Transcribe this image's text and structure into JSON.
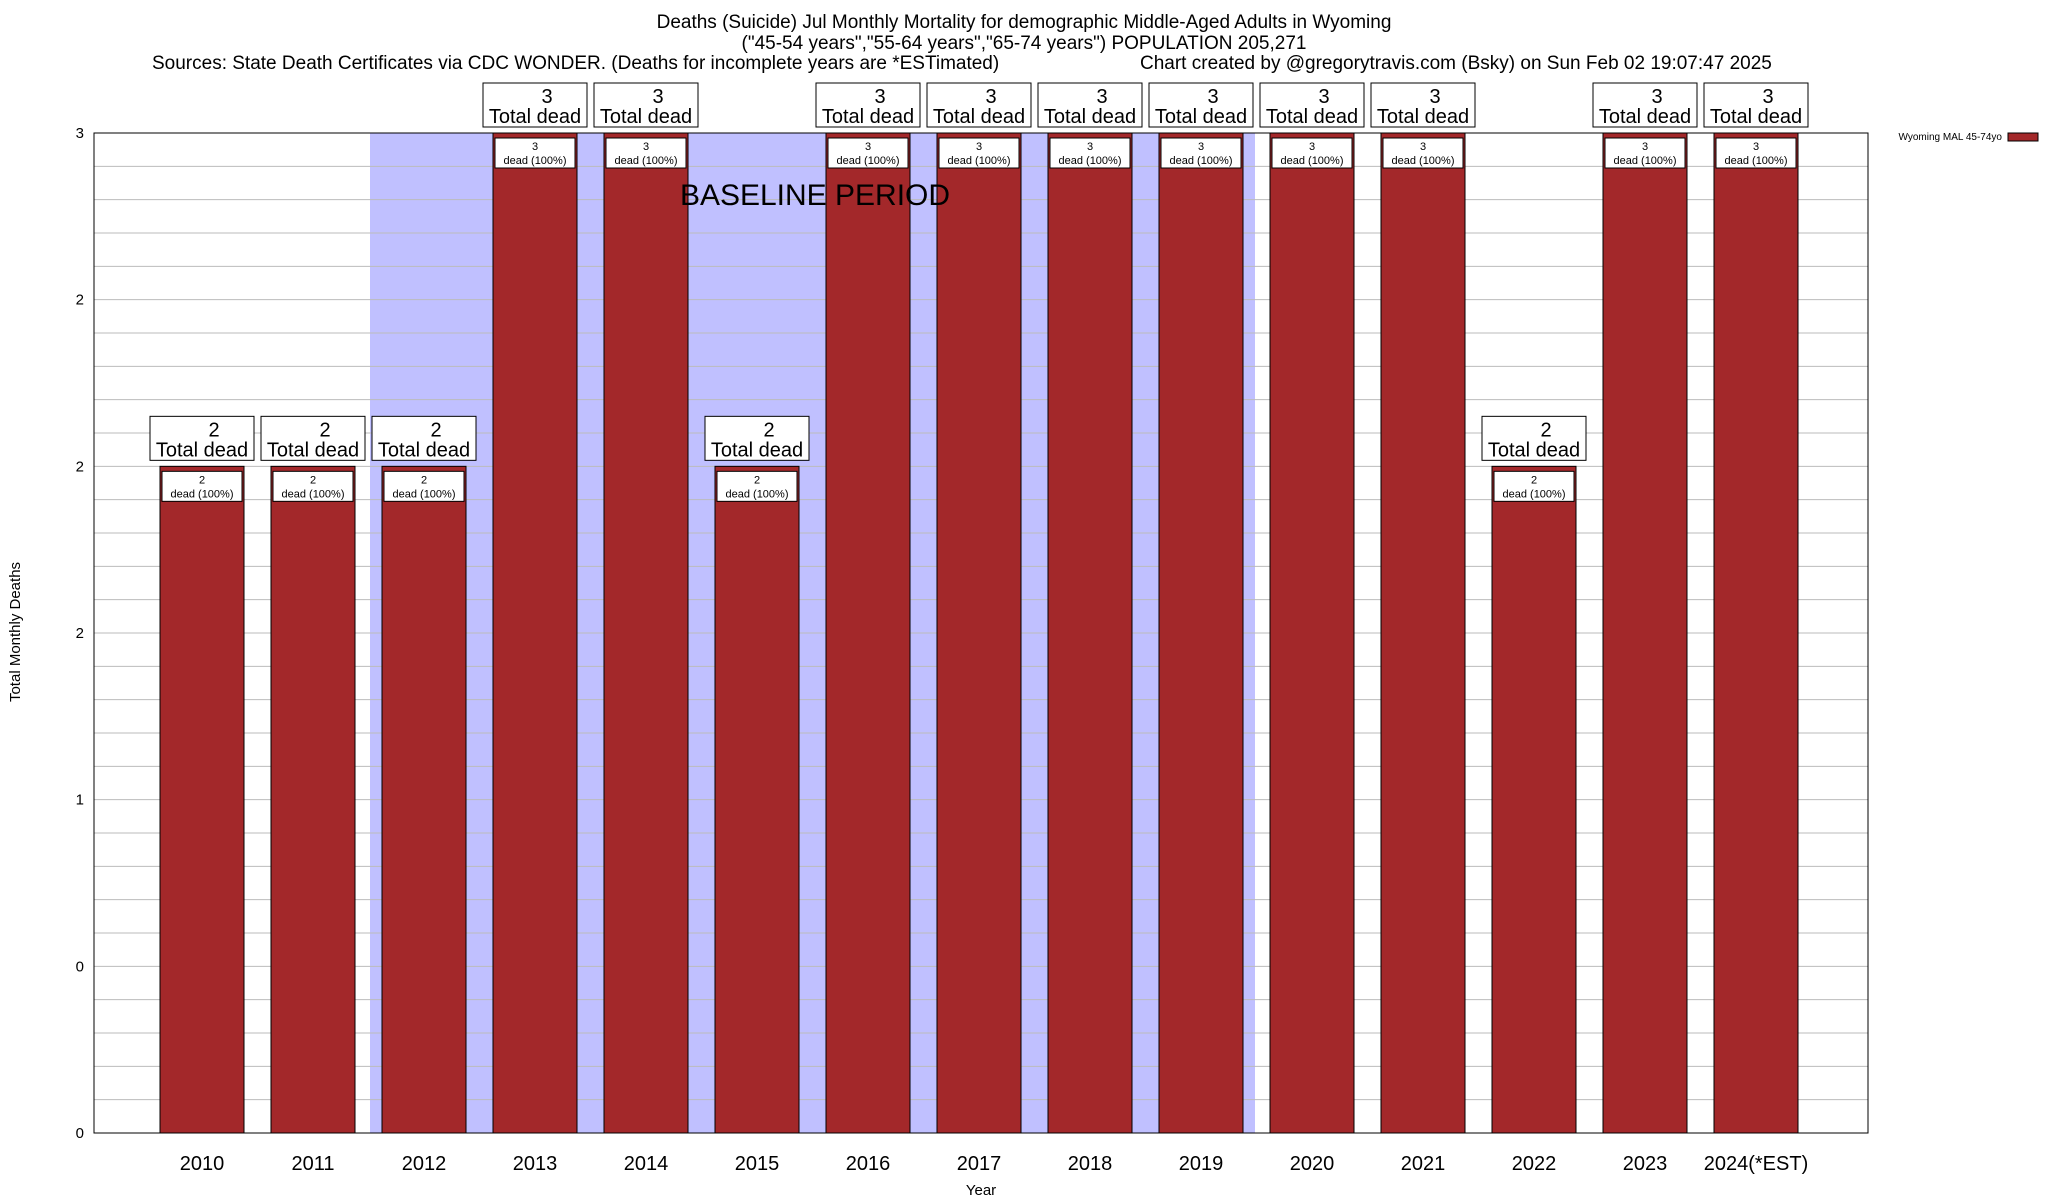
{
  "header": {
    "title_line1": "Deaths (Suicide) Jul Monthly Mortality for demographic Middle-Aged Adults in Wyoming",
    "title_line2": "(\"45-54 years\",\"55-64 years\",\"65-74 years\") POPULATION 205,271",
    "sources": "Sources: State Death Certificates via CDC WONDER. (Deaths for incomplete years are *ESTimated)",
    "credit": "Chart created by @gregorytravis.com (Bsky) on Sun Feb 02 19:07:47 2025"
  },
  "chart_data": {
    "type": "bar",
    "xlabel": "Year",
    "ylabel": "Total Monthly Deaths",
    "ylim": [
      0,
      3
    ],
    "y_tick_labels": [
      "0",
      "0",
      "1",
      "2",
      "2",
      "2",
      "3"
    ],
    "categories": [
      "2010",
      "2011",
      "2012",
      "2013",
      "2014",
      "2015",
      "2016",
      "2017",
      "2018",
      "2019",
      "2020",
      "2021",
      "2022",
      "2023",
      "2024(*EST)"
    ],
    "series": [
      {
        "name": "Wyoming MAL 45-74yo",
        "color": "#a3282a",
        "values": [
          2,
          2,
          2,
          3,
          3,
          2,
          3,
          3,
          3,
          3,
          3,
          3,
          2,
          3,
          3
        ]
      }
    ],
    "top_labels": [
      "Total dead"
    ],
    "inner_labels": [
      "dead (100%)"
    ],
    "baseline_label": "BASELINE PERIOD",
    "baseline_color": "#c0c0ff",
    "baseline_category_range": [
      "2012",
      "2019"
    ],
    "legend_placement": "top-right",
    "grid": true
  }
}
